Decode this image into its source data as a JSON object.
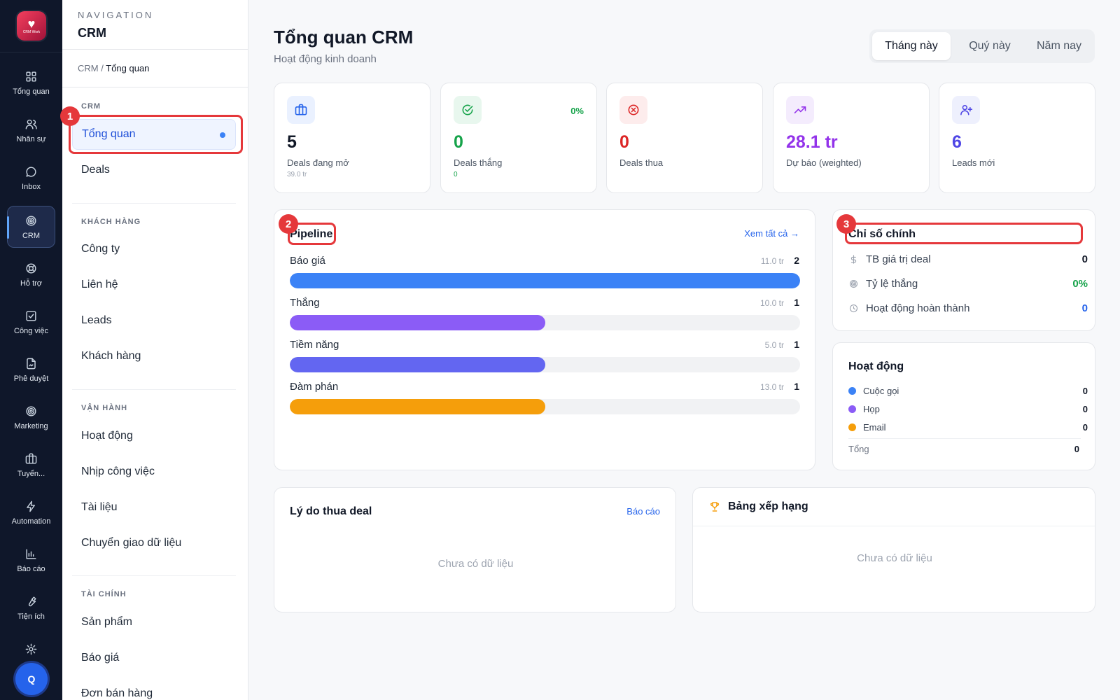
{
  "rail": {
    "logo_text": "CRM Work",
    "items": [
      {
        "label": "Tổng quan",
        "icon": "grid-icon"
      },
      {
        "label": "Nhân sự",
        "icon": "users-icon"
      },
      {
        "label": "Inbox",
        "icon": "chat-icon"
      },
      {
        "label": "CRM",
        "icon": "target-icon"
      },
      {
        "label": "Hỗ trợ",
        "icon": "lifebuoy-icon"
      },
      {
        "label": "Công việc",
        "icon": "checkbox-icon"
      },
      {
        "label": "Phê duyệt",
        "icon": "file-sign-icon"
      },
      {
        "label": "Marketing",
        "icon": "target-icon"
      },
      {
        "label": "Tuyển...",
        "icon": "briefcase-icon"
      },
      {
        "label": "Automation",
        "icon": "bolt-icon"
      },
      {
        "label": "Báo cáo",
        "icon": "bar-chart-icon"
      },
      {
        "label": "Tiện ích",
        "icon": "wrench-icon"
      }
    ],
    "avatar": "Q"
  },
  "nav": {
    "eyebrow": "NAVIGATION",
    "title": "CRM",
    "breadcrumb": {
      "root": "CRM",
      "sep": "/",
      "current": "Tổng quan"
    },
    "sections": [
      {
        "title": "CRM",
        "items": [
          "Tổng quan",
          "Deals"
        ]
      },
      {
        "title": "KHÁCH HÀNG",
        "items": [
          "Công ty",
          "Liên hệ",
          "Leads",
          "Khách hàng"
        ]
      },
      {
        "title": "VẬN HÀNH",
        "items": [
          "Hoạt động",
          "Nhịp công việc",
          "Tài liệu",
          "Chuyển giao dữ liệu"
        ]
      },
      {
        "title": "TÀI CHÍNH",
        "items": [
          "Sản phẩm",
          "Báo giá",
          "Đơn bán hàng"
        ]
      }
    ]
  },
  "markers": [
    "1",
    "2",
    "3"
  ],
  "header": {
    "title": "Tổng quan CRM",
    "subtitle": "Hoạt động kinh doanh",
    "periods": [
      "Tháng này",
      "Quý này",
      "Năm nay"
    ]
  },
  "stats": [
    {
      "value": "5",
      "label": "Deals đang mở",
      "sub": "39.0 tr",
      "color": "#111827",
      "icon": "briefcase-icon",
      "icon_color": "#2563eb",
      "icon_bg": "#eaf1ff"
    },
    {
      "value": "0",
      "label": "Deals thắng",
      "sub": "0",
      "pct": "0%",
      "color": "#16a34a",
      "icon": "check-circle-icon",
      "icon_color": "#16a34a",
      "icon_bg": "#e8f7ee"
    },
    {
      "value": "0",
      "label": "Deals thua",
      "color": "#dc2626",
      "icon": "x-circle-icon",
      "icon_color": "#dc2626",
      "icon_bg": "#fdecec"
    },
    {
      "value": "28.1 tr",
      "label": "Dự báo (weighted)",
      "color": "#9333ea",
      "icon": "trend-up-icon",
      "icon_color": "#9333ea",
      "icon_bg": "#f4ecfd"
    },
    {
      "value": "6",
      "label": "Leads mới",
      "color": "#4f46e5",
      "icon": "user-plus-icon",
      "icon_color": "#4f46e5",
      "icon_bg": "#eef0fd"
    }
  ],
  "pipeline": {
    "title": "Pipeline",
    "link": "Xem tất cả →",
    "stages": [
      {
        "name": "Báo giá",
        "amount": "11.0 tr",
        "count": "2",
        "fill": 1.0,
        "color": "#3b82f6"
      },
      {
        "name": "Thắng",
        "amount": "10.0 tr",
        "count": "1",
        "fill": 0.5,
        "color": "#8b5cf6"
      },
      {
        "name": "Tiềm năng",
        "amount": "5.0 tr",
        "count": "1",
        "fill": 0.5,
        "color": "#6366f1"
      },
      {
        "name": "Đàm phán",
        "amount": "13.0 tr",
        "count": "1",
        "fill": 0.5,
        "color": "#f59e0b"
      }
    ]
  },
  "metrics": {
    "title": "Chỉ số chính",
    "rows": [
      {
        "label": "TB giá trị deal",
        "value": "0",
        "color": "#111827",
        "icon": "dollar-icon"
      },
      {
        "label": "Tỷ lệ thắng",
        "value": "0%",
        "color": "#16a34a",
        "icon": "target-icon"
      },
      {
        "label": "Hoạt động hoàn thành",
        "value": "0",
        "color": "#2563eb",
        "icon": "clock-icon"
      }
    ]
  },
  "activity": {
    "title": "Hoạt động",
    "rows": [
      {
        "label": "Cuộc gọi",
        "value": "0",
        "color": "#3b82f6"
      },
      {
        "label": "Họp",
        "value": "0",
        "color": "#8b5cf6"
      },
      {
        "label": "Email",
        "value": "0",
        "color": "#f59e0b"
      }
    ],
    "total_label": "Tổng",
    "total_value": "0"
  },
  "loss_reasons": {
    "title": "Lý do thua deal",
    "link": "Báo cáo",
    "empty": "Chưa có dữ liệu"
  },
  "leaderboard": {
    "title": "Bảng xếp hạng",
    "empty": "Chưa có dữ liệu"
  }
}
